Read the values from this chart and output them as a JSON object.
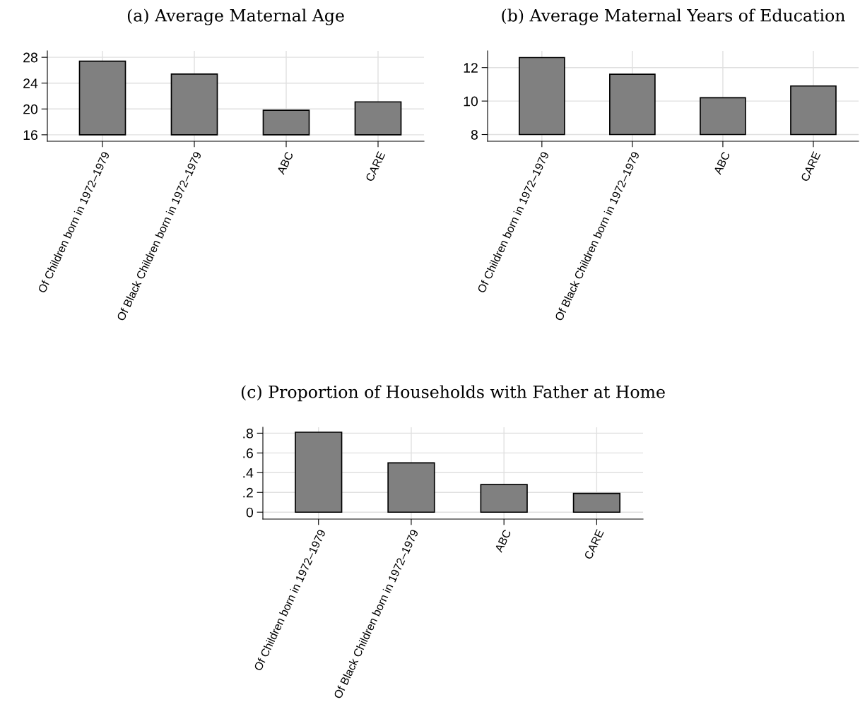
{
  "chart_data": [
    {
      "type": "bar",
      "title": "(a) Average Maternal Age",
      "categories": [
        "Of Children born in 1972–1979",
        "Of Black Children born in 1972–1979",
        "ABC",
        "CARE"
      ],
      "base": [
        16,
        16,
        16,
        16
      ],
      "values": [
        11.4,
        9.4,
        3.8,
        5.1
      ],
      "color": "#808080",
      "ylim": [
        15,
        29
      ],
      "yticks": [
        16,
        20,
        24,
        28
      ],
      "grid": true,
      "legend": false
    },
    {
      "type": "bar",
      "title": "(b) Average Maternal Years of Education",
      "categories": [
        "Of Children born in 1972–1979",
        "Of Black Children born in 1972–1979",
        "ABC",
        "CARE"
      ],
      "base": [
        8,
        8,
        8,
        8
      ],
      "values": [
        4.6,
        3.6,
        2.2,
        2.9
      ],
      "color": "#808080",
      "ylim": [
        7.6,
        13
      ],
      "yticks": [
        8,
        10,
        12
      ],
      "grid": true,
      "legend": false
    },
    {
      "type": "bar",
      "title": "(c) Proportion of Households with Father at Home",
      "categories": [
        "Of Children born in 1972–1979",
        "Of Black Children born in 1972–1979",
        "ABC",
        "CARE"
      ],
      "values": [
        0.81,
        0.5,
        0.28,
        0.19
      ],
      "color": "#808080",
      "ylim": [
        -0.07,
        0.86
      ],
      "yticks": [
        {
          "value": 0,
          "label": "0"
        },
        {
          "value": 0.2,
          "label": ".2"
        },
        {
          "value": 0.4,
          "label": ".4"
        },
        {
          "value": 0.6,
          "label": ".6"
        },
        {
          "value": 0.8,
          "label": ".8"
        }
      ],
      "grid": true,
      "legend": false
    }
  ]
}
